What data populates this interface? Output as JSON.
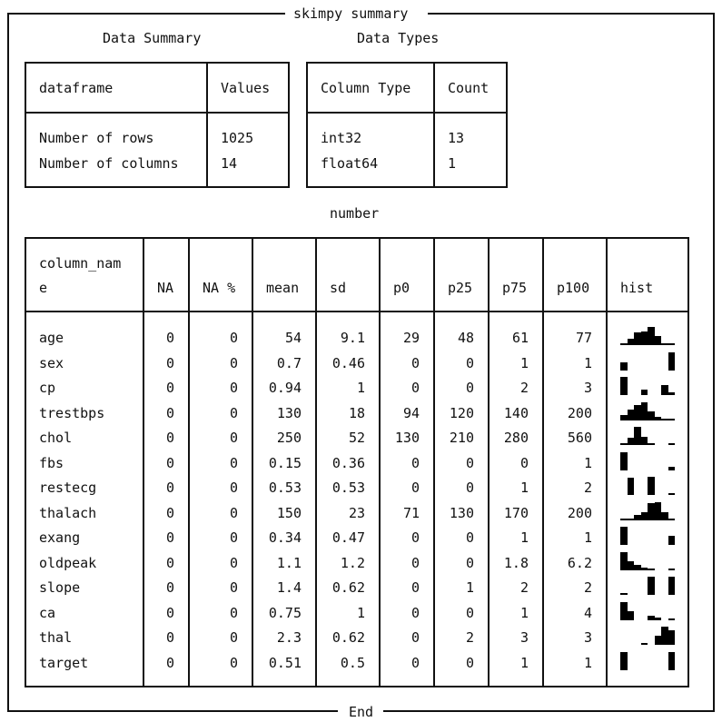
{
  "title": "skimpy summary",
  "footer": "End",
  "data_summary": {
    "caption": "Data Summary",
    "headers": [
      "dataframe",
      "Values"
    ],
    "rows": [
      [
        "Number of rows",
        "1025"
      ],
      [
        "Number of columns",
        "14"
      ]
    ]
  },
  "data_types": {
    "caption": "Data Types",
    "headers": [
      "Column Type",
      "Count"
    ],
    "rows": [
      [
        "int32",
        "13"
      ],
      [
        "float64",
        "1"
      ]
    ]
  },
  "number": {
    "caption": "number",
    "headers": [
      "column_name",
      "NA",
      "NA %",
      "mean",
      "sd",
      "p0",
      "p25",
      "p75",
      "p100",
      "hist"
    ],
    "header_col0_lines": [
      "column_nam",
      "e"
    ],
    "rows": [
      {
        "name": "age",
        "na": "0",
        "na_pct": "0",
        "mean": "54",
        "sd": "9.1",
        "p0": "29",
        "p25": "48",
        "p75": "61",
        "p100": "77",
        "hist": [
          0.05,
          0.35,
          0.7,
          0.75,
          1.0,
          0.5,
          0.1,
          0.05
        ]
      },
      {
        "name": "sex",
        "na": "0",
        "na_pct": "0",
        "mean": "0.7",
        "sd": "0.46",
        "p0": "0",
        "p25": "0",
        "p75": "1",
        "p100": "1",
        "hist": [
          0.45,
          0,
          0,
          0,
          0,
          0,
          0,
          1.0
        ]
      },
      {
        "name": "cp",
        "na": "0",
        "na_pct": "0",
        "mean": "0.94",
        "sd": "1",
        "p0": "0",
        "p25": "0",
        "p75": "2",
        "p100": "3",
        "hist": [
          1.0,
          0,
          0,
          0.3,
          0,
          0,
          0.55,
          0.15
        ]
      },
      {
        "name": "trestbps",
        "na": "0",
        "na_pct": "0",
        "mean": "130",
        "sd": "18",
        "p0": "94",
        "p25": "120",
        "p75": "140",
        "p100": "200",
        "hist": [
          0.3,
          0.6,
          0.85,
          1.0,
          0.5,
          0.2,
          0.1,
          0.05
        ]
      },
      {
        "name": "chol",
        "na": "0",
        "na_pct": "0",
        "mean": "250",
        "sd": "52",
        "p0": "130",
        "p25": "210",
        "p75": "280",
        "p100": "560",
        "hist": [
          0.05,
          0.4,
          1.0,
          0.45,
          0.1,
          0,
          0,
          0.05
        ]
      },
      {
        "name": "fbs",
        "na": "0",
        "na_pct": "0",
        "mean": "0.15",
        "sd": "0.36",
        "p0": "0",
        "p25": "0",
        "p75": "0",
        "p100": "1",
        "hist": [
          1.0,
          0,
          0,
          0,
          0,
          0,
          0,
          0.18
        ]
      },
      {
        "name": "restecg",
        "na": "0",
        "na_pct": "0",
        "mean": "0.53",
        "sd": "0.53",
        "p0": "0",
        "p25": "0",
        "p75": "1",
        "p100": "2",
        "hist": [
          0,
          0.95,
          0,
          0,
          1.0,
          0,
          0,
          0.05
        ]
      },
      {
        "name": "thalach",
        "na": "0",
        "na_pct": "0",
        "mean": "150",
        "sd": "23",
        "p0": "71",
        "p25": "130",
        "p75": "170",
        "p100": "200",
        "hist": [
          0.05,
          0.1,
          0.3,
          0.45,
          0.95,
          1.0,
          0.45,
          0.05
        ]
      },
      {
        "name": "exang",
        "na": "0",
        "na_pct": "0",
        "mean": "0.34",
        "sd": "0.47",
        "p0": "0",
        "p25": "0",
        "p75": "1",
        "p100": "1",
        "hist": [
          1.0,
          0,
          0,
          0,
          0,
          0,
          0,
          0.5
        ]
      },
      {
        "name": "oldpeak",
        "na": "0",
        "na_pct": "0",
        "mean": "1.1",
        "sd": "1.2",
        "p0": "0",
        "p25": "0",
        "p75": "1.8",
        "p100": "6.2",
        "hist": [
          1.0,
          0.5,
          0.3,
          0.15,
          0.05,
          0,
          0,
          0.03
        ]
      },
      {
        "name": "slope",
        "na": "0",
        "na_pct": "0",
        "mean": "1.4",
        "sd": "0.62",
        "p0": "0",
        "p25": "1",
        "p75": "2",
        "p100": "2",
        "hist": [
          0.1,
          0,
          0,
          0,
          1.0,
          0,
          0,
          1.0
        ]
      },
      {
        "name": "ca",
        "na": "0",
        "na_pct": "0",
        "mean": "0.75",
        "sd": "1",
        "p0": "0",
        "p25": "0",
        "p75": "1",
        "p100": "4",
        "hist": [
          1.0,
          0.5,
          0,
          0,
          0.25,
          0.15,
          0,
          0.05
        ]
      },
      {
        "name": "thal",
        "na": "0",
        "na_pct": "0",
        "mean": "2.3",
        "sd": "0.62",
        "p0": "0",
        "p25": "2",
        "p75": "3",
        "p100": "3",
        "hist": [
          0,
          0,
          0,
          0.05,
          0,
          0.5,
          1.0,
          0.8
        ]
      },
      {
        "name": "target",
        "na": "0",
        "na_pct": "0",
        "mean": "0.51",
        "sd": "0.5",
        "p0": "0",
        "p25": "0",
        "p75": "1",
        "p100": "1",
        "hist": [
          1.0,
          0,
          0,
          0,
          0,
          0,
          0,
          1.0
        ]
      }
    ]
  }
}
